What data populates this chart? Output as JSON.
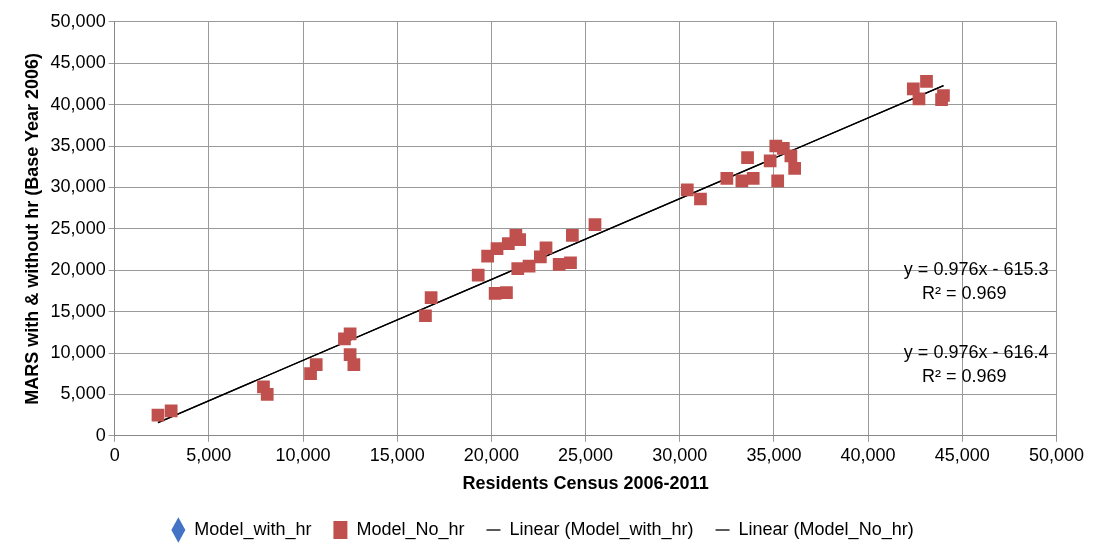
{
  "chart_data": {
    "type": "scatter",
    "xlabel": "Residents Census 2006-2011",
    "ylabel": "MARS with & without hr (Base Year 2006)",
    "xlim": [
      0,
      50000
    ],
    "ylim": [
      0,
      50000
    ],
    "xticks": [
      {
        "value": 0,
        "label": "0"
      },
      {
        "value": 5000,
        "label": "5,000"
      },
      {
        "value": 10000,
        "label": "10,000"
      },
      {
        "value": 15000,
        "label": "15,000"
      },
      {
        "value": 20000,
        "label": "20,000"
      },
      {
        "value": 25000,
        "label": "25,000"
      },
      {
        "value": 30000,
        "label": "30,000"
      },
      {
        "value": 35000,
        "label": "35,000"
      },
      {
        "value": 40000,
        "label": "40,000"
      },
      {
        "value": 45000,
        "label": "45,000"
      },
      {
        "value": 50000,
        "label": "50,000"
      }
    ],
    "yticks": [
      {
        "value": 0,
        "label": "0"
      },
      {
        "value": 5000,
        "label": "5,000"
      },
      {
        "value": 10000,
        "label": "10,000"
      },
      {
        "value": 15000,
        "label": "15,000"
      },
      {
        "value": 20000,
        "label": "20,000"
      },
      {
        "value": 25000,
        "label": "25,000"
      },
      {
        "value": 30000,
        "label": "30,000"
      },
      {
        "value": 35000,
        "label": "35,000"
      },
      {
        "value": 40000,
        "label": "40,000"
      },
      {
        "value": 45000,
        "label": "45,000"
      },
      {
        "value": 50000,
        "label": "50,000"
      }
    ],
    "grid": true,
    "legend": "bottom",
    "series": [
      {
        "name": "Model_with_hr",
        "marker": "diamond",
        "color": "#4472c4"
      },
      {
        "name": "Model_No_hr",
        "marker": "square",
        "color": "#c0504d",
        "x": [
          2300,
          3000,
          7900,
          8100,
          10400,
          10700,
          12200,
          12500,
          12500,
          12700,
          16500,
          16800,
          19300,
          19800,
          20200,
          20300,
          20800,
          20900,
          21300,
          21400,
          21500,
          22000,
          22600,
          22900,
          23600,
          24200,
          24300,
          25500,
          30400,
          31100,
          32500,
          33300,
          33600,
          33900,
          34800,
          35100,
          35200,
          35500,
          35900,
          36100,
          42400,
          42700,
          43100,
          43900,
          44000
        ],
        "values": [
          2500,
          3000,
          5900,
          5000,
          7500,
          8600,
          11700,
          12300,
          9800,
          8600,
          14500,
          16700,
          19400,
          21700,
          17200,
          22600,
          17300,
          23200,
          24200,
          20200,
          23700,
          20500,
          21600,
          22700,
          20700,
          20900,
          24200,
          25500,
          29700,
          28600,
          31100,
          30800,
          33600,
          31100,
          33200,
          35000,
          30800,
          34700,
          33800,
          32300,
          41900,
          40700,
          42800,
          40600,
          41100
        ]
      },
      {
        "name": "Linear (Model_with_hr)",
        "type": "line",
        "marker": "none",
        "color": "#000000",
        "x": [
          2300,
          44000
        ],
        "values": [
          1600,
          42300
        ]
      },
      {
        "name": "Linear (Model_No_hr)",
        "type": "line",
        "marker": "none",
        "color": "#000000",
        "x": [
          2300,
          44000
        ],
        "values": [
          1600,
          42300
        ]
      }
    ],
    "annotations": [
      "y = 0.976x - 615.3",
      "R² = 0.969",
      "y = 0.976x - 616.4",
      "R² = 0.969"
    ]
  }
}
